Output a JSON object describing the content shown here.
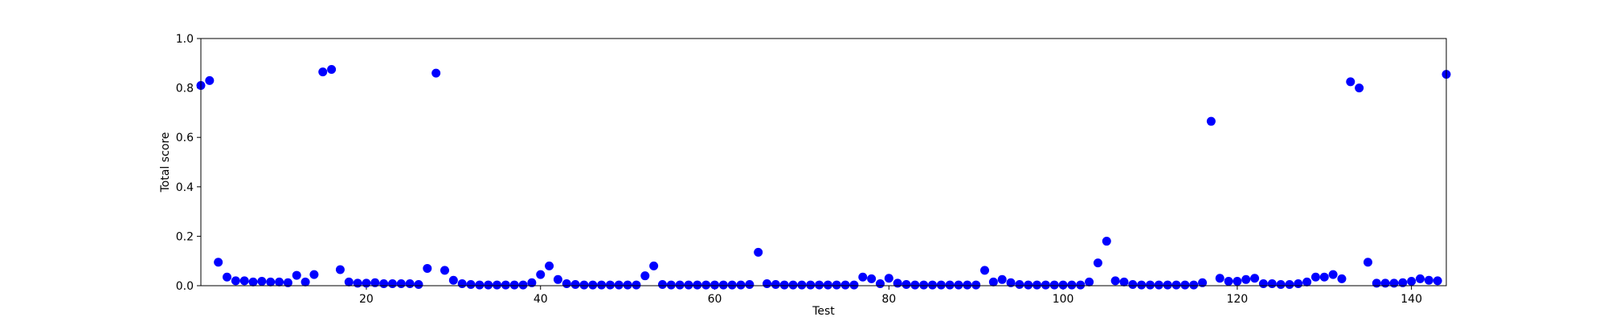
{
  "chart_data": {
    "type": "scatter",
    "xlabel": "Test",
    "ylabel": "Total score",
    "color": "#0000ff",
    "x": [
      1,
      2,
      3,
      4,
      5,
      6,
      7,
      8,
      9,
      10,
      11,
      12,
      13,
      14,
      15,
      16,
      17,
      18,
      19,
      20,
      21,
      22,
      23,
      24,
      25,
      26,
      27,
      28,
      29,
      30,
      31,
      32,
      33,
      34,
      35,
      36,
      37,
      38,
      39,
      40,
      41,
      42,
      43,
      44,
      45,
      46,
      47,
      48,
      49,
      50,
      51,
      52,
      53,
      54,
      55,
      56,
      57,
      58,
      59,
      60,
      61,
      62,
      63,
      64,
      65,
      66,
      67,
      68,
      69,
      70,
      71,
      72,
      73,
      74,
      75,
      76,
      77,
      78,
      79,
      80,
      81,
      82,
      83,
      84,
      85,
      86,
      87,
      88,
      89,
      90,
      91,
      92,
      93,
      94,
      95,
      96,
      97,
      98,
      99,
      100,
      101,
      102,
      103,
      104,
      105,
      106,
      107,
      108,
      109,
      110,
      111,
      112,
      113,
      114,
      115,
      116,
      117,
      118,
      119,
      120,
      121,
      122,
      123,
      124,
      125,
      126,
      127,
      128,
      129,
      130,
      131,
      132,
      133,
      134,
      135,
      136,
      137,
      138,
      139,
      140,
      141,
      142,
      143,
      144
    ],
    "values": [
      0.81,
      0.83,
      0.095,
      0.035,
      0.02,
      0.02,
      0.015,
      0.018,
      0.015,
      0.015,
      0.012,
      0.042,
      0.015,
      0.045,
      0.865,
      0.875,
      0.065,
      0.015,
      0.01,
      0.01,
      0.012,
      0.008,
      0.008,
      0.008,
      0.008,
      0.005,
      0.07,
      0.86,
      0.062,
      0.022,
      0.008,
      0.005,
      0.003,
      0.003,
      0.003,
      0.003,
      0.003,
      0.003,
      0.012,
      0.045,
      0.08,
      0.025,
      0.008,
      0.005,
      0.003,
      0.003,
      0.003,
      0.003,
      0.003,
      0.003,
      0.003,
      0.04,
      0.08,
      0.005,
      0.003,
      0.003,
      0.003,
      0.003,
      0.003,
      0.003,
      0.003,
      0.003,
      0.003,
      0.005,
      0.135,
      0.008,
      0.005,
      0.003,
      0.003,
      0.003,
      0.003,
      0.003,
      0.003,
      0.003,
      0.003,
      0.003,
      0.035,
      0.028,
      0.008,
      0.03,
      0.01,
      0.005,
      0.003,
      0.003,
      0.003,
      0.003,
      0.003,
      0.003,
      0.003,
      0.003,
      0.062,
      0.015,
      0.025,
      0.012,
      0.005,
      0.003,
      0.003,
      0.003,
      0.003,
      0.003,
      0.003,
      0.003,
      0.015,
      0.092,
      0.18,
      0.02,
      0.015,
      0.005,
      0.003,
      0.003,
      0.003,
      0.003,
      0.003,
      0.003,
      0.003,
      0.012,
      0.665,
      0.03,
      0.018,
      0.018,
      0.025,
      0.03,
      0.008,
      0.008,
      0.005,
      0.005,
      0.008,
      0.015,
      0.035,
      0.035,
      0.045,
      0.028,
      0.825,
      0.8,
      0.095,
      0.01,
      0.01,
      0.01,
      0.012,
      0.018,
      0.028,
      0.022,
      0.02,
      0.855
    ],
    "xlim": [
      1,
      144
    ],
    "xticks": [
      20,
      40,
      60,
      80,
      100,
      120,
      140
    ],
    "ylim": [
      0,
      1
    ],
    "yticks": [
      {
        "value": 0,
        "label": "0.0"
      },
      {
        "value": 0.2,
        "label": "0.2"
      },
      {
        "value": 0.4,
        "label": "0.4"
      },
      {
        "value": 0.6,
        "label": "0.6"
      },
      {
        "value": 0.8,
        "label": "0.8"
      },
      {
        "value": 1,
        "label": "1.0"
      }
    ]
  }
}
